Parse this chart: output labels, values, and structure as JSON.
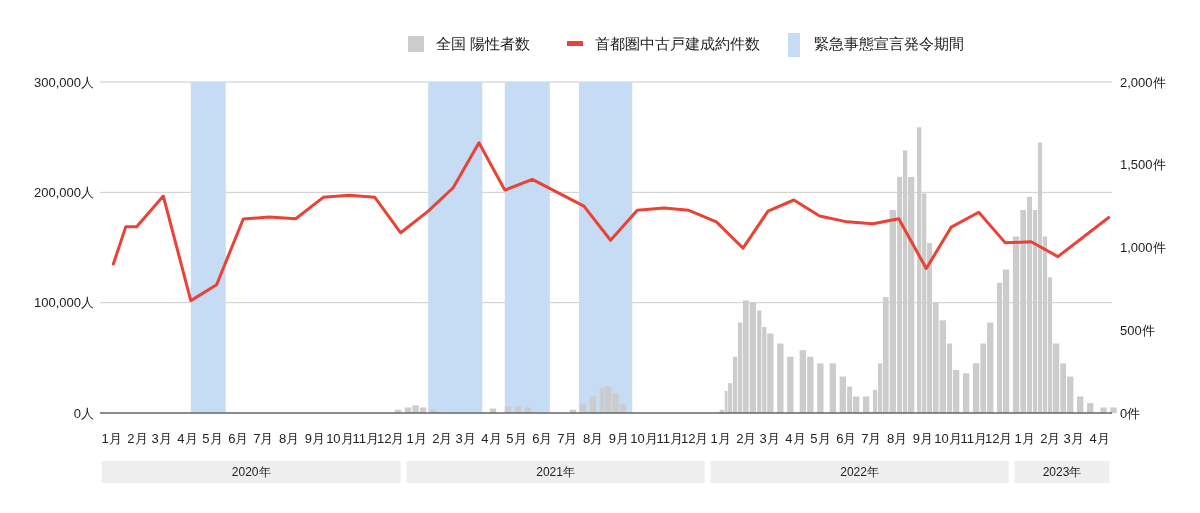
{
  "chart_data": {
    "type": "bar",
    "legend": "top",
    "grid": "y",
    "xlim": [
      "2020-01-01",
      "2023-04-30"
    ],
    "xticks": [
      {
        "value": "2020-01-15",
        "label": "1月"
      },
      {
        "value": "2020-02-15",
        "label": "2月"
      },
      {
        "value": "2020-03-15",
        "label": "3月"
      },
      {
        "value": "2020-04-15",
        "label": "4月"
      },
      {
        "value": "2020-05-15",
        "label": "5月"
      },
      {
        "value": "2020-06-15",
        "label": "6月"
      },
      {
        "value": "2020-07-15",
        "label": "7月"
      },
      {
        "value": "2020-08-15",
        "label": "8月"
      },
      {
        "value": "2020-09-15",
        "label": "9月"
      },
      {
        "value": "2020-10-15",
        "label": "10月"
      },
      {
        "value": "2020-11-15",
        "label": "11月"
      },
      {
        "value": "2020-12-15",
        "label": "12月"
      },
      {
        "value": "2021-01-15",
        "label": "1月"
      },
      {
        "value": "2021-02-15",
        "label": "2月"
      },
      {
        "value": "2021-03-15",
        "label": "3月"
      },
      {
        "value": "2021-04-15",
        "label": "4月"
      },
      {
        "value": "2021-05-15",
        "label": "5月"
      },
      {
        "value": "2021-06-15",
        "label": "6月"
      },
      {
        "value": "2021-07-15",
        "label": "7月"
      },
      {
        "value": "2021-08-15",
        "label": "8月"
      },
      {
        "value": "2021-09-15",
        "label": "9月"
      },
      {
        "value": "2021-10-15",
        "label": "10月"
      },
      {
        "value": "2021-11-15",
        "label": "11月"
      },
      {
        "value": "2021-12-15",
        "label": "12月"
      },
      {
        "value": "2022-01-15",
        "label": "1月"
      },
      {
        "value": "2022-02-15",
        "label": "2月"
      },
      {
        "value": "2022-03-15",
        "label": "3月"
      },
      {
        "value": "2022-04-15",
        "label": "4月"
      },
      {
        "value": "2022-05-15",
        "label": "5月"
      },
      {
        "value": "2022-06-15",
        "label": "6月"
      },
      {
        "value": "2022-07-15",
        "label": "7月"
      },
      {
        "value": "2022-08-15",
        "label": "8月"
      },
      {
        "value": "2022-09-15",
        "label": "9月"
      },
      {
        "value": "2022-10-15",
        "label": "10月"
      },
      {
        "value": "2022-11-15",
        "label": "11月"
      },
      {
        "value": "2022-12-15",
        "label": "12月"
      },
      {
        "value": "2023-01-15",
        "label": "1月"
      },
      {
        "value": "2023-02-15",
        "label": "2月"
      },
      {
        "value": "2023-03-15",
        "label": "3月"
      },
      {
        "value": "2023-04-15",
        "label": "4月"
      }
    ],
    "ylim": [
      0,
      300000
    ],
    "yticks": [
      {
        "value": 0,
        "label": "0人"
      },
      {
        "value": 100000,
        "label": "100,000人"
      },
      {
        "value": 200000,
        "label": "200,000人"
      },
      {
        "value": 300000,
        "label": "300,000人"
      }
    ],
    "y2lim": [
      0,
      2000
    ],
    "y2ticks": [
      {
        "value": 0,
        "label": "0件"
      },
      {
        "value": 500,
        "label": "500件"
      },
      {
        "value": 1000,
        "label": "1,000件"
      },
      {
        "value": 1500,
        "label": "1,500件"
      },
      {
        "value": 2000,
        "label": "2,000件"
      }
    ],
    "annotations": [
      "2020年",
      "2021年",
      "2022年",
      "2023年"
    ],
    "bands": [
      {
        "axis": "x",
        "from": "2020-04-19",
        "to": "2020-05-31",
        "label": "緊急事態宣言発令期間",
        "color": "#c6dcf5"
      },
      {
        "axis": "x",
        "from": "2021-01-29",
        "to": "2021-04-04",
        "color": "#c6dcf5"
      },
      {
        "axis": "x",
        "from": "2021-05-01",
        "to": "2021-06-24",
        "color": "#c6dcf5"
      },
      {
        "axis": "x",
        "from": "2021-07-29",
        "to": "2021-10-01",
        "color": "#c6dcf5"
      }
    ],
    "series": [
      {
        "name": "全国 陽性者数",
        "color": "#cccccc",
        "x": [
          "2020-12-20",
          "2021-01-01",
          "2021-01-10",
          "2021-01-19",
          "2021-01-31",
          "2021-04-13",
          "2021-05-01",
          "2021-05-13",
          "2021-05-25",
          "2021-07-18",
          "2021-07-30",
          "2021-08-11",
          "2021-08-23",
          "2021-08-29",
          "2021-09-07",
          "2021-09-16",
          "2022-01-14",
          "2022-01-20",
          "2022-01-24",
          "2022-01-30",
          "2022-02-05",
          "2022-02-11",
          "2022-02-19",
          "2022-02-28",
          "2022-03-06",
          "2022-03-12",
          "2022-03-24",
          "2022-04-05",
          "2022-04-20",
          "2022-04-29",
          "2022-05-11",
          "2022-05-26",
          "2022-06-07",
          "2022-06-16",
          "2022-06-23",
          "2022-07-05",
          "2022-07-17",
          "2022-07-23",
          "2022-07-29",
          "2022-08-06",
          "2022-08-15",
          "2022-08-22",
          "2022-08-28",
          "2022-09-08",
          "2022-09-14",
          "2022-09-20",
          "2022-09-27",
          "2022-10-05",
          "2022-10-14",
          "2022-10-21",
          "2022-11-02",
          "2022-11-14",
          "2022-11-23",
          "2022-12-01",
          "2022-12-13",
          "2022-12-20",
          "2023-01-01",
          "2023-01-10",
          "2023-01-18",
          "2023-01-25",
          "2023-01-31",
          "2023-02-06",
          "2023-02-12",
          "2023-02-18",
          "2023-02-27",
          "2023-03-07",
          "2023-03-19",
          "2023-03-31",
          "2023-04-16",
          "2023-04-28"
        ],
        "values": [
          3000,
          5000,
          7000,
          5000,
          3000,
          4000,
          6000,
          6000,
          5000,
          3000,
          8000,
          15000,
          23000,
          24000,
          18000,
          8000,
          3000,
          20000,
          27000,
          51000,
          82000,
          102000,
          100000,
          93000,
          78000,
          72000,
          63000,
          51000,
          57000,
          51000,
          45000,
          45000,
          33000,
          24000,
          15000,
          15000,
          21000,
          45000,
          105000,
          184000,
          214000,
          238000,
          214000,
          259000,
          199000,
          154000,
          100000,
          84000,
          63000,
          39000,
          36000,
          45000,
          63000,
          82000,
          118000,
          130000,
          160000,
          184000,
          196000,
          184000,
          245000,
          160000,
          123000,
          63000,
          45000,
          33000,
          15000,
          9000,
          5000,
          5000
        ]
      },
      {
        "name": "首都圏中古戸建成約件数",
        "type": "line",
        "axis": "y2",
        "color": "#ea4335",
        "x": [
          "2020-01-17",
          "2020-02-01",
          "2020-02-14",
          "2020-03-17",
          "2020-04-19",
          "2020-05-20",
          "2020-06-21",
          "2020-07-22",
          "2020-08-23",
          "2020-09-25",
          "2020-10-26",
          "2020-11-26",
          "2020-12-27",
          "2021-01-29",
          "2021-02-28",
          "2021-03-31",
          "2021-05-01",
          "2021-06-03",
          "2021-08-04",
          "2021-09-05",
          "2021-10-07",
          "2021-11-08",
          "2021-12-08",
          "2022-01-10",
          "2022-02-11",
          "2022-03-13",
          "2022-04-13",
          "2022-05-14",
          "2022-06-16",
          "2022-07-17",
          "2022-08-17",
          "2022-09-19",
          "2022-10-19",
          "2022-11-21",
          "2022-12-23",
          "2023-01-23",
          "2023-02-24",
          "2023-04-26"
        ],
        "values": [
          900,
          1126,
          1126,
          1311,
          679,
          775,
          1172,
          1184,
          1174,
          1303,
          1315,
          1303,
          1089,
          1220,
          1361,
          1633,
          1347,
          1412,
          1250,
          1044,
          1225,
          1239,
          1225,
          1155,
          996,
          1220,
          1287,
          1190,
          1155,
          1144,
          1174,
          873,
          1123,
          1213,
          1028,
          1035,
          945,
          1181
        ]
      }
    ]
  }
}
